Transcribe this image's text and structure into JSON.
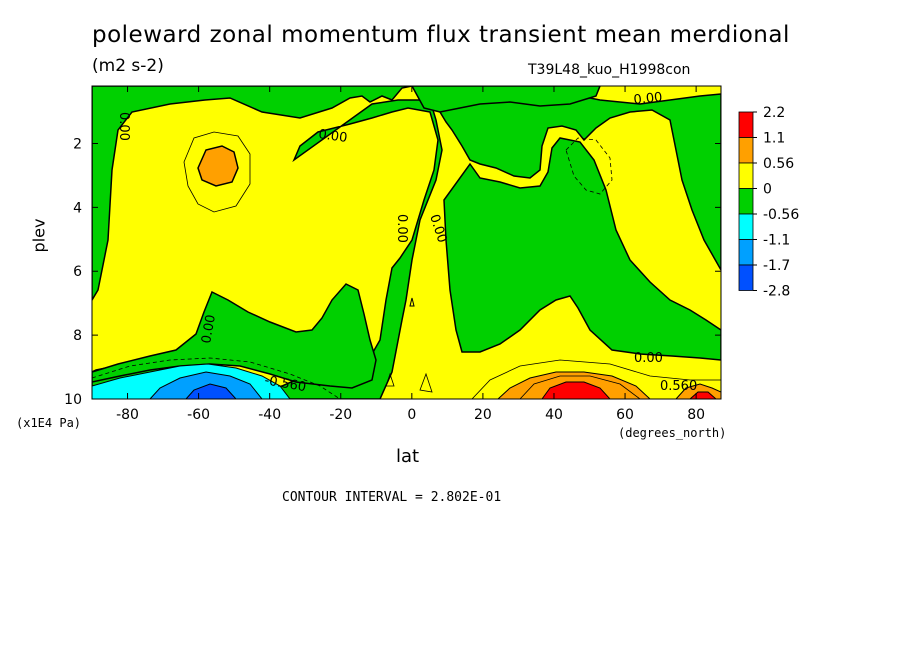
{
  "chart_data": {
    "type": "heatmap",
    "title": "poleward zonal momentum flux transient mean merdional",
    "units": "(m2 s-2)",
    "run_label": "T39L48_kuo_H1998con",
    "xlabel": "lat",
    "ylabel": "plev",
    "x_unit_label": "(degrees_north)",
    "y_unit_label": "(x1E4 Pa)",
    "xlim": [
      -90,
      87
    ],
    "ylim": [
      0.2,
      10
    ],
    "y_inverted": true,
    "x_ticks": [
      -80,
      -60,
      -40,
      -20,
      0,
      20,
      40,
      60,
      80
    ],
    "y_ticks": [
      2,
      4,
      6,
      8,
      10
    ],
    "contour_interval_text": "CONTOUR INTERVAL = 2.802E-01",
    "contour_labels": [
      "0.00",
      "0.00",
      "0.00",
      "0.00",
      "0.00",
      "0.00",
      "0.00",
      "-0.560",
      "0.560"
    ],
    "colorbar": {
      "levels": [
        "2.2",
        "1.1",
        "0.56",
        "0",
        "-0.56",
        "-1.1",
        "-1.7",
        "-2.8"
      ],
      "colors": [
        "#ff0000",
        "#ffa000",
        "#ffff00",
        "#00d000",
        "#00ffff",
        "#00a0ff",
        "#0050ff"
      ]
    },
    "regions": [
      {
        "id": "sh-upper-max",
        "lat": -54,
        "plev": 2.5,
        "value": 0.7
      },
      {
        "id": "sh-surface-min",
        "lat": -55,
        "plev": 9.9,
        "value": -1.6
      },
      {
        "id": "nh-surface-max",
        "lat": 50,
        "plev": 9.8,
        "value": 1.5
      },
      {
        "id": "nh-upper-min",
        "lat": 55,
        "plev": 2.8,
        "value": -0.3
      },
      {
        "id": "nh-surface-edge-max",
        "lat": 82,
        "plev": 9.9,
        "value": 1.2
      }
    ]
  }
}
